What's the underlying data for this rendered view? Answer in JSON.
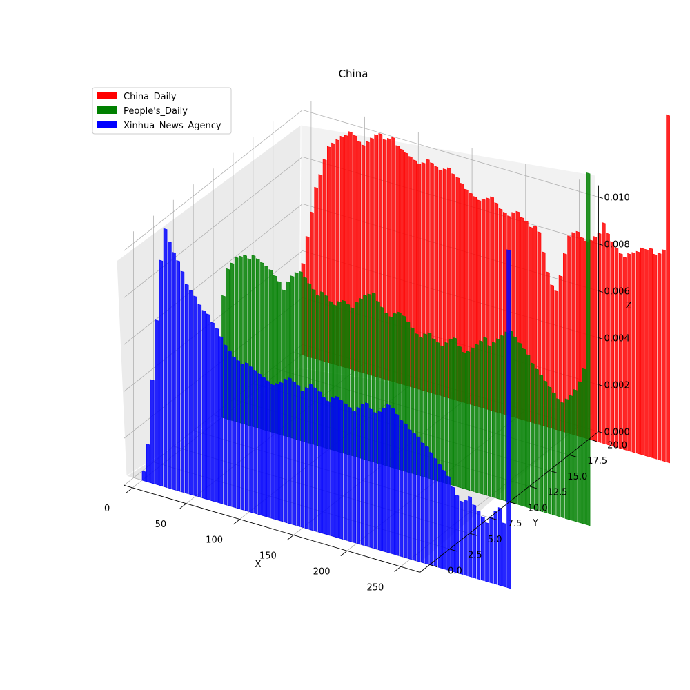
{
  "chart_data": {
    "type": "bar",
    "title": "China",
    "xlabel": "X",
    "ylabel": "Y",
    "zlabel": "Z",
    "xlim": [
      0,
      256
    ],
    "ylim": [
      0,
      20
    ],
    "zlim": [
      0,
      0.01
    ],
    "x_ticks": [
      "0",
      "50",
      "100",
      "150",
      "200",
      "250"
    ],
    "y_ticks": [
      "0.0",
      "2.5",
      "5.0",
      "7.5",
      "10.0",
      "12.5",
      "15.0",
      "17.5",
      "20.0"
    ],
    "z_ticks": [
      "0.000",
      "0.002",
      "0.004",
      "0.006",
      "0.008",
      "0.010"
    ],
    "grid": true,
    "legend_position": "top-left",
    "x_step": 4,
    "series": [
      {
        "name": "China_Daily",
        "color": "#ff0000",
        "y": 20,
        "values": [
          0.0039,
          0.0051,
          0.0062,
          0.0073,
          0.0079,
          0.0086,
          0.0092,
          0.0094,
          0.0096,
          0.0098,
          0.0099,
          0.0101,
          0.01,
          0.0098,
          0.0097,
          0.0099,
          0.0101,
          0.0103,
          0.0104,
          0.0102,
          0.0103,
          0.0104,
          0.0101,
          0.01,
          0.0099,
          0.0098,
          0.0097,
          0.0096,
          0.0097,
          0.0099,
          0.0098,
          0.0097,
          0.0096,
          0.0097,
          0.0098,
          0.0096,
          0.0095,
          0.0093,
          0.0091,
          0.009,
          0.0089,
          0.0088,
          0.0089,
          0.009,
          0.0091,
          0.0089,
          0.0087,
          0.0086,
          0.0085,
          0.0087,
          0.0088,
          0.0086,
          0.0085,
          0.0083,
          0.0084,
          0.0082,
          0.0074,
          0.0066,
          0.0061,
          0.0059,
          0.0066,
          0.0076,
          0.0084,
          0.0086,
          0.0087,
          0.0085,
          0.0084,
          0.0085,
          0.0087,
          0.0089,
          0.0094,
          0.009,
          0.0087,
          0.0085,
          0.0083,
          0.0082,
          0.0084,
          0.0085,
          0.0086,
          0.0088,
          0.0088,
          0.0089,
          0.0087,
          0.0088,
          0.009,
          0.0148
        ]
      },
      {
        "name": "People's_Daily",
        "color": "#008000",
        "y": 10,
        "values": [
          0.0052,
          0.0064,
          0.0067,
          0.007,
          0.0071,
          0.0072,
          0.0071,
          0.0073,
          0.0072,
          0.0071,
          0.007,
          0.0069,
          0.0067,
          0.0065,
          0.0062,
          0.0066,
          0.0069,
          0.0071,
          0.0072,
          0.007,
          0.0068,
          0.0066,
          0.0064,
          0.0066,
          0.0065,
          0.0063,
          0.0062,
          0.0064,
          0.0065,
          0.0064,
          0.0063,
          0.0066,
          0.0068,
          0.007,
          0.0071,
          0.0072,
          0.0069,
          0.0067,
          0.0065,
          0.0064,
          0.0066,
          0.0067,
          0.0066,
          0.0064,
          0.0062,
          0.006,
          0.0059,
          0.0061,
          0.0062,
          0.006,
          0.0059,
          0.0058,
          0.006,
          0.0062,
          0.0063,
          0.006,
          0.0058,
          0.0059,
          0.0061,
          0.0063,
          0.0065,
          0.0067,
          0.0064,
          0.0066,
          0.0068,
          0.007,
          0.0072,
          0.0073,
          0.0071,
          0.0069,
          0.0067,
          0.0065,
          0.0062,
          0.006,
          0.0058,
          0.0056,
          0.0054,
          0.0052,
          0.005,
          0.0049,
          0.0051,
          0.0053,
          0.0056,
          0.006,
          0.0066,
          0.015
        ]
      },
      {
        "name": "Xinhua_News_Agency",
        "color": "#0000ff",
        "y": 0,
        "values": [
          0.0004,
          0.0016,
          0.0044,
          0.007,
          0.0096,
          0.011,
          0.0105,
          0.0101,
          0.0098,
          0.0094,
          0.0089,
          0.0087,
          0.0085,
          0.0082,
          0.008,
          0.0079,
          0.0076,
          0.0074,
          0.0071,
          0.0068,
          0.0066,
          0.0064,
          0.0063,
          0.0062,
          0.0063,
          0.0062,
          0.0061,
          0.006,
          0.0059,
          0.0058,
          0.0057,
          0.0058,
          0.0059,
          0.0061,
          0.0062,
          0.0061,
          0.006,
          0.0058,
          0.006,
          0.0062,
          0.0061,
          0.006,
          0.0058,
          0.0057,
          0.0059,
          0.006,
          0.0059,
          0.0058,
          0.0057,
          0.0056,
          0.0058,
          0.006,
          0.0061,
          0.0059,
          0.0058,
          0.0059,
          0.0061,
          0.0063,
          0.0062,
          0.006,
          0.0058,
          0.0057,
          0.0055,
          0.0054,
          0.0053,
          0.0051,
          0.005,
          0.0048,
          0.0046,
          0.0044,
          0.0042,
          0.004,
          0.0036,
          0.0033,
          0.0031,
          0.0032,
          0.0034,
          0.0031,
          0.0029,
          0.0027,
          0.0025,
          0.0028,
          0.0031,
          0.0033,
          0.0027,
          0.0144
        ]
      }
    ]
  }
}
